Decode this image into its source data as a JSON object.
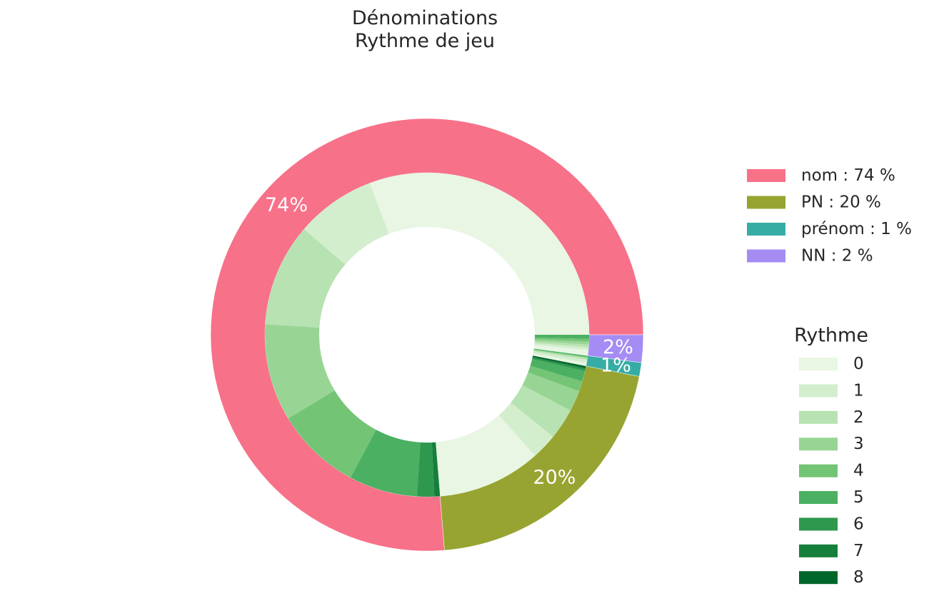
{
  "title_lines": [
    "Dénominations",
    "Rythme de jeu"
  ],
  "chart_data": {
    "type": "pie",
    "subtype": "nested-donut",
    "outer_ring": {
      "categories": [
        "nom",
        "PN",
        "prénom",
        "NN"
      ],
      "legend_labels": [
        "nom : 74 %",
        "PN : 20 %",
        "prénom : 1 %",
        "NN : 2 %"
      ],
      "values": [
        74,
        20,
        1,
        2
      ],
      "display_labels": [
        "74%",
        "20%",
        "1%",
        "2%"
      ],
      "colors": [
        "#f77189",
        "#97a431",
        "#36ada4",
        "#a48cf4"
      ],
      "start_angle_deg": 0,
      "direction": "counterclockwise-from-right"
    },
    "inner_ring": {
      "legend_title": "Rythme",
      "categories": [
        "0",
        "1",
        "2",
        "3",
        "4",
        "5",
        "6",
        "7",
        "8"
      ],
      "colors": [
        "#e8f6e3",
        "#d3eecd",
        "#b7e2b1",
        "#98d594",
        "#74c476",
        "#4bb062",
        "#2f984f",
        "#157f3b",
        "#00672a"
      ],
      "segments": [
        {
          "group": "nom",
          "values": [
            27.0,
            7.0,
            9.0,
            8.5,
            7.5,
            6.0,
            1.5,
            0.5,
            0.0
          ]
        },
        {
          "group": "PN",
          "values": [
            10.0,
            2.5,
            3.0,
            2.0,
            1.0,
            1.0,
            0.2,
            0.1,
            0.2
          ]
        },
        {
          "group": "prénom",
          "values": [
            0.3,
            0.3,
            0.2,
            0.0,
            0.1,
            0.1,
            0.0,
            0.0,
            0.0
          ]
        },
        {
          "group": "NN",
          "values": [
            0.4,
            0.2,
            0.2,
            0.2,
            0.2,
            0.3,
            0.0,
            0.0,
            0.0
          ]
        }
      ]
    }
  }
}
